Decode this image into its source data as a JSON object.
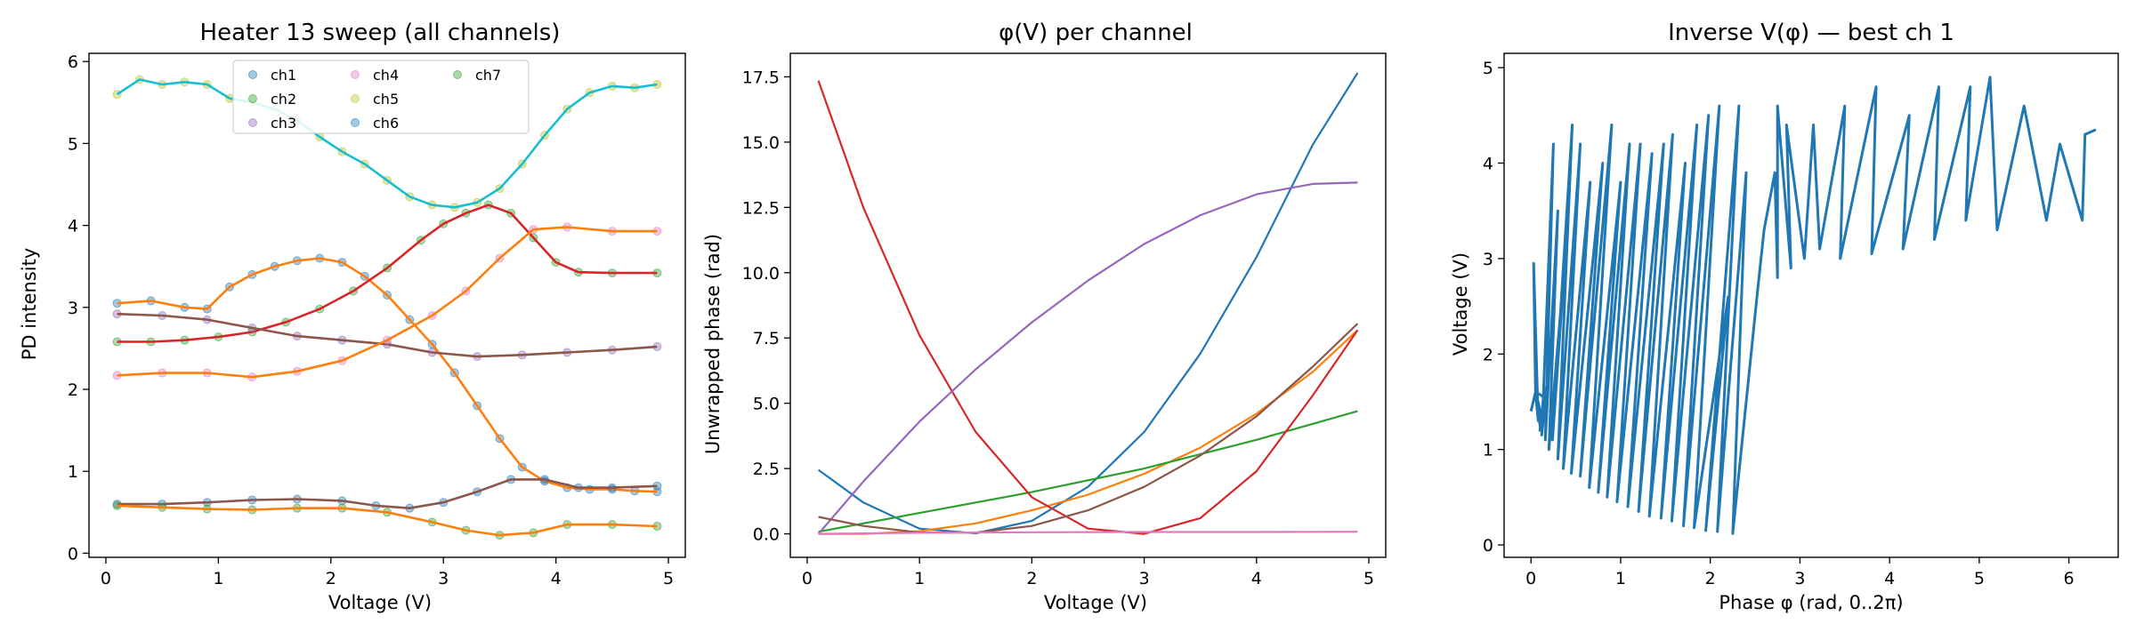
{
  "chart_data": [
    {
      "type": "scatter",
      "title": "Heater 13 sweep (all channels)",
      "xlabel": "Voltage (V)",
      "ylabel": "PD intensity",
      "xlim": [
        -0.15,
        5.15
      ],
      "ylim": [
        -0.05,
        6.1
      ],
      "xticks": [
        0,
        1,
        2,
        3,
        4,
        5
      ],
      "yticks": [
        0,
        1,
        2,
        3,
        4,
        5,
        6
      ],
      "legend": {
        "placement": "top-center",
        "columns": 3
      },
      "colors": {
        "ch1": "#1f77b4",
        "ch2": "#2ca02c",
        "ch3": "#9467bd",
        "ch4": "#e377c2",
        "ch5": "#bcbd22",
        "ch6": "#1f77b4",
        "ch7": "#2ca02c",
        "fit_a": "#ff7f0e",
        "fit_b": "#d62728",
        "fit_c": "#8c564b",
        "fit_d": "#17becf"
      },
      "series": [
        {
          "name": "ch1",
          "points": [
            [
              0.1,
              3.05
            ],
            [
              0.4,
              3.08
            ],
            [
              0.7,
              3.0
            ],
            [
              0.9,
              2.98
            ],
            [
              1.1,
              3.25
            ],
            [
              1.3,
              3.4
            ],
            [
              1.5,
              3.5
            ],
            [
              1.7,
              3.57
            ],
            [
              1.9,
              3.6
            ],
            [
              2.1,
              3.55
            ],
            [
              2.3,
              3.38
            ],
            [
              2.5,
              3.15
            ],
            [
              2.7,
              2.85
            ],
            [
              2.9,
              2.55
            ],
            [
              3.1,
              2.2
            ],
            [
              3.3,
              1.8
            ],
            [
              3.5,
              1.4
            ],
            [
              3.7,
              1.05
            ],
            [
              3.9,
              0.88
            ],
            [
              4.1,
              0.8
            ],
            [
              4.3,
              0.78
            ],
            [
              4.5,
              0.78
            ],
            [
              4.7,
              0.76
            ],
            [
              4.9,
              0.75
            ]
          ]
        },
        {
          "name": "ch2",
          "points": [
            [
              0.1,
              2.58
            ],
            [
              0.4,
              2.58
            ],
            [
              0.7,
              2.6
            ],
            [
              1.0,
              2.64
            ],
            [
              1.3,
              2.7
            ],
            [
              1.6,
              2.82
            ],
            [
              1.9,
              2.98
            ],
            [
              2.2,
              3.2
            ],
            [
              2.5,
              3.48
            ],
            [
              2.8,
              3.82
            ],
            [
              3.0,
              4.02
            ],
            [
              3.2,
              4.15
            ],
            [
              3.4,
              4.25
            ],
            [
              3.6,
              4.15
            ],
            [
              3.8,
              3.85
            ],
            [
              4.0,
              3.55
            ],
            [
              4.2,
              3.43
            ],
            [
              4.5,
              3.42
            ],
            [
              4.9,
              3.42
            ]
          ]
        },
        {
          "name": "ch3",
          "points": [
            [
              0.1,
              2.92
            ],
            [
              0.5,
              2.9
            ],
            [
              0.9,
              2.85
            ],
            [
              1.3,
              2.75
            ],
            [
              1.7,
              2.65
            ],
            [
              2.1,
              2.6
            ],
            [
              2.5,
              2.55
            ],
            [
              2.9,
              2.45
            ],
            [
              3.3,
              2.4
            ],
            [
              3.7,
              2.42
            ],
            [
              4.1,
              2.45
            ],
            [
              4.5,
              2.48
            ],
            [
              4.9,
              2.52
            ]
          ]
        },
        {
          "name": "ch4",
          "points": [
            [
              0.1,
              2.17
            ],
            [
              0.5,
              2.2
            ],
            [
              0.9,
              2.2
            ],
            [
              1.3,
              2.15
            ],
            [
              1.7,
              2.22
            ],
            [
              2.1,
              2.35
            ],
            [
              2.5,
              2.6
            ],
            [
              2.9,
              2.9
            ],
            [
              3.2,
              3.2
            ],
            [
              3.5,
              3.6
            ],
            [
              3.8,
              3.95
            ],
            [
              4.1,
              3.98
            ],
            [
              4.5,
              3.93
            ],
            [
              4.9,
              3.93
            ]
          ]
        },
        {
          "name": "ch5",
          "points": [
            [
              0.1,
              5.6
            ],
            [
              0.3,
              5.78
            ],
            [
              0.5,
              5.72
            ],
            [
              0.7,
              5.75
            ],
            [
              0.9,
              5.72
            ],
            [
              1.1,
              5.55
            ],
            [
              1.3,
              5.5
            ],
            [
              1.5,
              5.42
            ],
            [
              1.7,
              5.28
            ],
            [
              1.9,
              5.08
            ],
            [
              2.1,
              4.9
            ],
            [
              2.3,
              4.75
            ],
            [
              2.5,
              4.55
            ],
            [
              2.7,
              4.35
            ],
            [
              2.9,
              4.25
            ],
            [
              3.1,
              4.22
            ],
            [
              3.3,
              4.28
            ],
            [
              3.5,
              4.45
            ],
            [
              3.7,
              4.75
            ],
            [
              3.9,
              5.1
            ],
            [
              4.1,
              5.42
            ],
            [
              4.3,
              5.62
            ],
            [
              4.5,
              5.7
            ],
            [
              4.7,
              5.68
            ],
            [
              4.9,
              5.72
            ]
          ]
        },
        {
          "name": "ch6",
          "points": [
            [
              0.1,
              0.6
            ],
            [
              0.5,
              0.6
            ],
            [
              0.9,
              0.62
            ],
            [
              1.3,
              0.65
            ],
            [
              1.7,
              0.66
            ],
            [
              2.1,
              0.64
            ],
            [
              2.4,
              0.58
            ],
            [
              2.7,
              0.55
            ],
            [
              3.0,
              0.62
            ],
            [
              3.3,
              0.75
            ],
            [
              3.6,
              0.9
            ],
            [
              3.9,
              0.9
            ],
            [
              4.2,
              0.8
            ],
            [
              4.5,
              0.8
            ],
            [
              4.9,
              0.82
            ]
          ]
        },
        {
          "name": "ch7",
          "points": [
            [
              0.1,
              0.58
            ],
            [
              0.5,
              0.56
            ],
            [
              0.9,
              0.54
            ],
            [
              1.3,
              0.53
            ],
            [
              1.7,
              0.55
            ],
            [
              2.1,
              0.55
            ],
            [
              2.5,
              0.5
            ],
            [
              2.9,
              0.38
            ],
            [
              3.2,
              0.28
            ],
            [
              3.5,
              0.22
            ],
            [
              3.8,
              0.25
            ],
            [
              4.1,
              0.35
            ],
            [
              4.5,
              0.35
            ],
            [
              4.9,
              0.33
            ]
          ]
        }
      ]
    },
    {
      "type": "line",
      "title": "φ(V) per channel",
      "xlabel": "Voltage (V)",
      "ylabel": "Unwrapped phase (rad)",
      "xlim": [
        -0.15,
        5.15
      ],
      "ylim": [
        -0.9,
        18.4
      ],
      "xticks": [
        0,
        1,
        2,
        3,
        4,
        5
      ],
      "yticks": [
        "0.0",
        "2.5",
        "5.0",
        "7.5",
        "10.0",
        "12.5",
        "15.0",
        "17.5"
      ],
      "series": [
        {
          "color": "#1f77b4",
          "x": [
            0.1,
            0.5,
            1.0,
            1.5,
            2.0,
            2.5,
            3.0,
            3.5,
            4.0,
            4.5,
            4.9
          ],
          "y": [
            2.45,
            1.2,
            0.2,
            0.02,
            0.5,
            1.8,
            3.9,
            6.9,
            10.6,
            14.9,
            17.65
          ]
        },
        {
          "color": "#ff7f0e",
          "x": [
            0.1,
            0.5,
            1.0,
            1.5,
            2.0,
            2.5,
            3.0,
            3.5,
            4.0,
            4.5,
            4.9
          ],
          "y": [
            0.0,
            0.0,
            0.1,
            0.4,
            0.9,
            1.5,
            2.3,
            3.3,
            4.6,
            6.2,
            7.8
          ]
        },
        {
          "color": "#2ca02c",
          "x": [
            0.1,
            1.0,
            2.0,
            3.0,
            4.0,
            4.9
          ],
          "y": [
            0.08,
            0.8,
            1.6,
            2.5,
            3.6,
            4.7
          ]
        },
        {
          "color": "#d62728",
          "x": [
            0.1,
            0.5,
            1.0,
            1.5,
            2.0,
            2.5,
            3.0,
            3.5,
            4.0,
            4.5,
            4.9
          ],
          "y": [
            17.35,
            12.5,
            7.6,
            3.9,
            1.4,
            0.2,
            0.0,
            0.6,
            2.4,
            5.3,
            7.8
          ]
        },
        {
          "color": "#9467bd",
          "x": [
            0.1,
            0.5,
            1.0,
            1.5,
            2.0,
            2.5,
            3.0,
            3.5,
            4.0,
            4.5,
            4.9
          ],
          "y": [
            0.0,
            2.0,
            4.3,
            6.3,
            8.1,
            9.7,
            11.1,
            12.2,
            13.0,
            13.4,
            13.45
          ]
        },
        {
          "color": "#8c564b",
          "x": [
            0.1,
            0.5,
            1.0,
            1.5,
            2.0,
            2.5,
            3.0,
            3.5,
            4.0,
            4.5,
            4.9
          ],
          "y": [
            0.65,
            0.3,
            0.05,
            0.05,
            0.3,
            0.9,
            1.8,
            3.0,
            4.5,
            6.4,
            8.05
          ]
        },
        {
          "color": "#e377c2",
          "x": [
            0.1,
            1.0,
            2.0,
            3.0,
            4.0,
            4.9
          ],
          "y": [
            0.0,
            0.04,
            0.06,
            0.07,
            0.07,
            0.08
          ]
        }
      ]
    },
    {
      "type": "line",
      "title": "Inverse V(φ) — best ch 1",
      "xlabel": "Phase φ (rad, 0..2π)",
      "ylabel": "Voltage (V)",
      "xlim": [
        -0.3,
        6.55
      ],
      "ylim": [
        -0.13,
        5.15
      ],
      "xticks": [
        0,
        1,
        2,
        3,
        4,
        5,
        6
      ],
      "yticks": [
        0,
        1,
        2,
        3,
        4,
        5
      ],
      "series": [
        {
          "color": "#1f77b4",
          "x": [
            0.0,
            0.05,
            0.03,
            0.08,
            0.05,
            0.12,
            0.08,
            0.1,
            0.06,
            0.14,
            0.1,
            0.18,
            0.12,
            0.25,
            0.16,
            0.3,
            0.2,
            0.38,
            0.24,
            0.46,
            0.3,
            0.55,
            0.36,
            0.66,
            0.45,
            0.8,
            0.55,
            0.9,
            0.65,
            1.0,
            0.75,
            1.1,
            0.85,
            1.22,
            0.96,
            1.35,
            1.08,
            1.48,
            1.2,
            1.58,
            1.32,
            1.72,
            1.45,
            1.85,
            1.57,
            1.98,
            1.7,
            2.1,
            1.82,
            2.2,
            1.95,
            2.32,
            2.08,
            2.4,
            2.25,
            2.52,
            2.6,
            2.72,
            2.75,
            2.75,
            2.9,
            2.85,
            3.05,
            3.15,
            3.22,
            3.5,
            3.45,
            3.85,
            3.8,
            4.22,
            4.15,
            4.55,
            4.5,
            4.9,
            4.85,
            5.12,
            5.2,
            5.5,
            5.75,
            5.9,
            6.15,
            6.18,
            6.3
          ],
          "y": [
            1.4,
            1.6,
            2.95,
            1.3,
            1.6,
            1.3,
            1.5,
            1.25,
            1.6,
            1.55,
            1.2,
            1.7,
            1.15,
            4.2,
            1.1,
            3.5,
            1.0,
            3.0,
            1.1,
            4.4,
            0.9,
            4.2,
            0.8,
            3.8,
            0.75,
            4.0,
            0.72,
            4.4,
            0.6,
            3.8,
            0.55,
            4.2,
            0.5,
            4.2,
            0.45,
            4.1,
            0.4,
            4.2,
            0.35,
            4.3,
            0.3,
            4.0,
            0.28,
            4.4,
            0.25,
            4.5,
            0.2,
            4.6,
            0.18,
            2.6,
            0.15,
            4.6,
            0.14,
            3.9,
            0.12,
            2.6,
            3.3,
            3.9,
            2.8,
            4.6,
            2.9,
            4.4,
            3.0,
            4.4,
            3.1,
            4.6,
            3.0,
            4.8,
            3.05,
            4.5,
            3.1,
            4.8,
            3.2,
            4.8,
            3.4,
            4.9,
            3.3,
            4.6,
            3.4,
            4.2,
            3.4,
            4.3,
            4.35
          ]
        }
      ]
    }
  ]
}
